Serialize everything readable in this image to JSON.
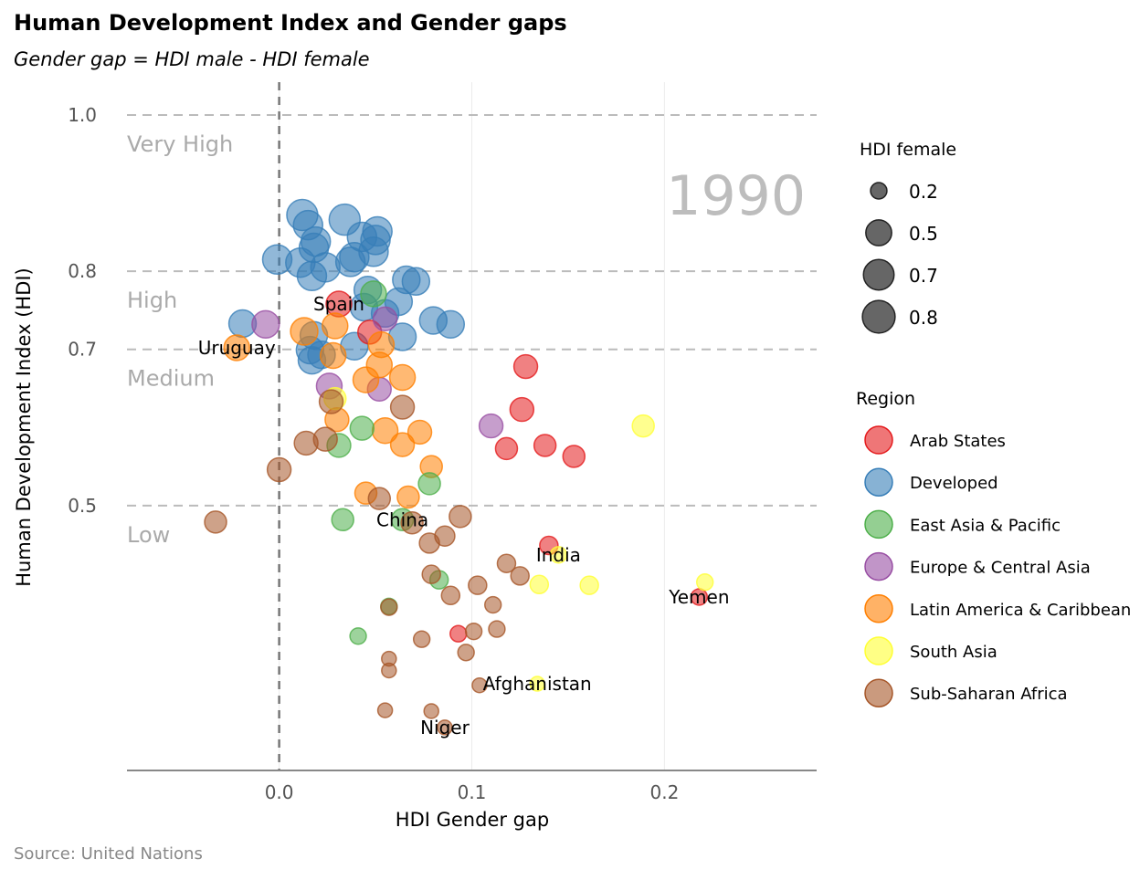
{
  "chart_data": {
    "type": "scatter",
    "title": "Human Development Index and Gender gaps",
    "subtitle": "Gender gap =  HDI male - HDI female",
    "xlabel": "HDI Gender gap",
    "ylabel": "Human Development Index (HDI)",
    "source": "Source: United Nations",
    "year": "1990",
    "xlim": [
      -0.079,
      0.279
    ],
    "ylim": [
      0.161,
      1.042
    ],
    "x_ticks": [
      {
        "value": 0.0,
        "label": "0.0"
      },
      {
        "value": 0.1,
        "label": "0.1"
      },
      {
        "value": 0.2,
        "label": "0.2"
      }
    ],
    "y_ticks": [
      {
        "value": 1.0,
        "label": "1.0"
      },
      {
        "value": 0.8,
        "label": "0.8"
      },
      {
        "value": 0.7,
        "label": "0.7"
      },
      {
        "value": 0.5,
        "label": "0.5"
      }
    ],
    "bands": [
      {
        "label": "Very High",
        "top": 1.0
      },
      {
        "label": "High",
        "top": 0.8
      },
      {
        "label": "Medium",
        "top": 0.7
      },
      {
        "label": "Low",
        "top": 0.5
      }
    ],
    "zero_line": 0.0,
    "size_legend": {
      "title": "HDI female",
      "values": [
        {
          "value": 0.2,
          "label": "0.2"
        },
        {
          "value": 0.5,
          "label": "0.5"
        },
        {
          "value": 0.7,
          "label": "0.7"
        },
        {
          "value": 0.8,
          "label": "0.8"
        }
      ]
    },
    "color_legend": {
      "title": "Region",
      "regions": [
        {
          "name": "Arab States",
          "color": "#e41a1c"
        },
        {
          "name": "Developed",
          "color": "#377eb8"
        },
        {
          "name": "East Asia & Pacific",
          "color": "#4daf4a"
        },
        {
          "name": "Europe & Central Asia",
          "color": "#984ea3"
        },
        {
          "name": "Latin America & Caribbean",
          "color": "#ff7f00"
        },
        {
          "name": "South Asia",
          "color": "#ffff33"
        },
        {
          "name": "Sub-Saharan Africa",
          "color": "#a65628"
        }
      ]
    },
    "columns": [
      "gap",
      "hdi",
      "hdi_female",
      "region",
      "label"
    ],
    "points": [
      [
        0.012,
        0.872,
        0.72,
        "Developed",
        ""
      ],
      [
        0.015,
        0.859,
        0.64,
        "Developed",
        ""
      ],
      [
        0.034,
        0.866,
        0.72,
        "Developed",
        ""
      ],
      [
        0.051,
        0.851,
        0.64,
        "Developed",
        ""
      ],
      [
        0.043,
        0.844,
        0.64,
        "Developed",
        ""
      ],
      [
        0.05,
        0.84,
        0.64,
        "Developed",
        ""
      ],
      [
        0.019,
        0.838,
        0.64,
        "Developed",
        ""
      ],
      [
        0.018,
        0.83,
        0.64,
        "Developed",
        ""
      ],
      [
        -0.001,
        0.815,
        0.64,
        "Developed",
        ""
      ],
      [
        0.011,
        0.811,
        0.64,
        "Developed",
        ""
      ],
      [
        0.024,
        0.805,
        0.64,
        "Developed",
        ""
      ],
      [
        0.037,
        0.812,
        0.64,
        "Developed",
        ""
      ],
      [
        0.049,
        0.825,
        0.64,
        "Developed",
        ""
      ],
      [
        0.039,
        0.818,
        0.64,
        "Developed",
        ""
      ],
      [
        0.017,
        0.794,
        0.64,
        "Developed",
        ""
      ],
      [
        0.066,
        0.789,
        0.56,
        "Developed",
        ""
      ],
      [
        0.071,
        0.787,
        0.56,
        "Developed",
        ""
      ],
      [
        0.046,
        0.776,
        0.56,
        "Developed",
        ""
      ],
      [
        0.062,
        0.761,
        0.56,
        "Developed",
        ""
      ],
      [
        0.044,
        0.754,
        0.56,
        "Developed",
        ""
      ],
      [
        0.055,
        0.746,
        0.56,
        "Developed",
        ""
      ],
      [
        0.08,
        0.737,
        0.56,
        "Developed",
        ""
      ],
      [
        0.089,
        0.732,
        0.56,
        "Developed",
        ""
      ],
      [
        -0.019,
        0.733,
        0.56,
        "Developed",
        ""
      ],
      [
        0.018,
        0.718,
        0.56,
        "Developed",
        ""
      ],
      [
        0.064,
        0.716,
        0.56,
        "Developed",
        ""
      ],
      [
        0.016,
        0.699,
        0.56,
        "Developed",
        ""
      ],
      [
        0.039,
        0.704,
        0.56,
        "Developed",
        ""
      ],
      [
        0.022,
        0.693,
        0.56,
        "Developed",
        ""
      ],
      [
        0.017,
        0.686,
        0.56,
        "Developed",
        ""
      ],
      [
        0.031,
        0.758,
        0.49,
        "Arab States",
        "Spain"
      ],
      [
        0.047,
        0.722,
        0.42,
        "Arab States",
        ""
      ],
      [
        0.128,
        0.678,
        0.42,
        "Arab States",
        ""
      ],
      [
        0.126,
        0.623,
        0.42,
        "Arab States",
        ""
      ],
      [
        0.118,
        0.573,
        0.36,
        "Arab States",
        ""
      ],
      [
        0.138,
        0.577,
        0.36,
        "Arab States",
        ""
      ],
      [
        0.153,
        0.563,
        0.36,
        "Arab States",
        ""
      ],
      [
        0.14,
        0.449,
        0.25,
        "Arab States",
        ""
      ],
      [
        0.218,
        0.383,
        0.2,
        "Arab States",
        "Yemen"
      ],
      [
        0.093,
        0.336,
        0.2,
        "Arab States",
        ""
      ],
      [
        -0.007,
        0.732,
        0.56,
        "Europe & Central Asia",
        ""
      ],
      [
        0.026,
        0.653,
        0.49,
        "Europe & Central Asia",
        ""
      ],
      [
        0.052,
        0.649,
        0.42,
        "Europe & Central Asia",
        ""
      ],
      [
        0.11,
        0.602,
        0.42,
        "Europe & Central Asia",
        ""
      ],
      [
        0.055,
        0.739,
        0.42,
        "Europe & Central Asia",
        ""
      ],
      [
        -0.022,
        0.702,
        0.49,
        "Latin America & Caribbean",
        "Uruguay"
      ],
      [
        0.013,
        0.723,
        0.56,
        "Latin America & Caribbean",
        ""
      ],
      [
        0.029,
        0.73,
        0.49,
        "Latin America & Caribbean",
        ""
      ],
      [
        0.053,
        0.706,
        0.49,
        "Latin America & Caribbean",
        ""
      ],
      [
        0.052,
        0.68,
        0.49,
        "Latin America & Caribbean",
        ""
      ],
      [
        0.045,
        0.661,
        0.49,
        "Latin America & Caribbean",
        ""
      ],
      [
        0.064,
        0.664,
        0.49,
        "Latin America & Caribbean",
        ""
      ],
      [
        0.03,
        0.61,
        0.42,
        "Latin America & Caribbean",
        ""
      ],
      [
        0.055,
        0.596,
        0.49,
        "Latin America & Caribbean",
        ""
      ],
      [
        0.073,
        0.594,
        0.42,
        "Latin America & Caribbean",
        ""
      ],
      [
        0.064,
        0.578,
        0.42,
        "Latin America & Caribbean",
        ""
      ],
      [
        0.079,
        0.55,
        0.36,
        "Latin America & Caribbean",
        ""
      ],
      [
        0.045,
        0.516,
        0.36,
        "Latin America & Caribbean",
        ""
      ],
      [
        0.067,
        0.511,
        0.36,
        "Latin America & Caribbean",
        ""
      ],
      [
        0.028,
        0.692,
        0.49,
        "Latin America & Caribbean",
        ""
      ],
      [
        0.189,
        0.602,
        0.36,
        "South Asia",
        ""
      ],
      [
        0.135,
        0.399,
        0.25,
        "South Asia",
        ""
      ],
      [
        0.161,
        0.398,
        0.25,
        "South Asia",
        ""
      ],
      [
        0.221,
        0.402,
        0.2,
        "South Asia",
        ""
      ],
      [
        0.145,
        0.437,
        0.2,
        "South Asia",
        "India"
      ],
      [
        0.134,
        0.272,
        0.16,
        "South Asia",
        "Afghanistan"
      ],
      [
        0.029,
        0.637,
        0.36,
        "South Asia",
        ""
      ],
      [
        0.043,
        0.599,
        0.42,
        "East Asia & Pacific",
        ""
      ],
      [
        0.031,
        0.577,
        0.42,
        "East Asia & Pacific",
        ""
      ],
      [
        0.078,
        0.528,
        0.36,
        "East Asia & Pacific",
        ""
      ],
      [
        0.033,
        0.482,
        0.36,
        "East Asia & Pacific",
        ""
      ],
      [
        0.064,
        0.482,
        0.36,
        "East Asia & Pacific",
        "China"
      ],
      [
        0.083,
        0.405,
        0.25,
        "East Asia & Pacific",
        ""
      ],
      [
        0.057,
        0.371,
        0.2,
        "East Asia & Pacific",
        ""
      ],
      [
        0.041,
        0.333,
        0.2,
        "East Asia & Pacific",
        ""
      ],
      [
        0.049,
        0.771,
        0.49,
        "East Asia & Pacific",
        ""
      ],
      [
        0.027,
        0.633,
        0.42,
        "Sub-Saharan Africa",
        ""
      ],
      [
        0.064,
        0.626,
        0.42,
        "Sub-Saharan Africa",
        ""
      ],
      [
        0.024,
        0.585,
        0.42,
        "Sub-Saharan Africa",
        ""
      ],
      [
        0.014,
        0.58,
        0.42,
        "Sub-Saharan Africa",
        ""
      ],
      [
        0.0,
        0.546,
        0.42,
        "Sub-Saharan Africa",
        ""
      ],
      [
        -0.033,
        0.479,
        0.36,
        "Sub-Saharan Africa",
        ""
      ],
      [
        0.052,
        0.509,
        0.36,
        "Sub-Saharan Africa",
        ""
      ],
      [
        0.069,
        0.478,
        0.36,
        "Sub-Saharan Africa",
        ""
      ],
      [
        0.094,
        0.486,
        0.36,
        "Sub-Saharan Africa",
        ""
      ],
      [
        0.086,
        0.461,
        0.3,
        "Sub-Saharan Africa",
        ""
      ],
      [
        0.078,
        0.452,
        0.3,
        "Sub-Saharan Africa",
        ""
      ],
      [
        0.079,
        0.412,
        0.25,
        "Sub-Saharan Africa",
        ""
      ],
      [
        0.089,
        0.385,
        0.25,
        "Sub-Saharan Africa",
        ""
      ],
      [
        0.103,
        0.398,
        0.25,
        "Sub-Saharan Africa",
        ""
      ],
      [
        0.118,
        0.426,
        0.25,
        "Sub-Saharan Africa",
        ""
      ],
      [
        0.125,
        0.41,
        0.25,
        "Sub-Saharan Africa",
        ""
      ],
      [
        0.111,
        0.373,
        0.2,
        "Sub-Saharan Africa",
        ""
      ],
      [
        0.057,
        0.37,
        0.2,
        "Sub-Saharan Africa",
        ""
      ],
      [
        0.101,
        0.339,
        0.2,
        "Sub-Saharan Africa",
        ""
      ],
      [
        0.113,
        0.342,
        0.2,
        "Sub-Saharan Africa",
        ""
      ],
      [
        0.074,
        0.329,
        0.2,
        "Sub-Saharan Africa",
        ""
      ],
      [
        0.097,
        0.312,
        0.2,
        "Sub-Saharan Africa",
        ""
      ],
      [
        0.057,
        0.304,
        0.16,
        "Sub-Saharan Africa",
        ""
      ],
      [
        0.057,
        0.289,
        0.16,
        "Sub-Saharan Africa",
        ""
      ],
      [
        0.104,
        0.27,
        0.16,
        "Sub-Saharan Africa",
        ""
      ],
      [
        0.055,
        0.238,
        0.16,
        "Sub-Saharan Africa",
        ""
      ],
      [
        0.079,
        0.237,
        0.16,
        "Sub-Saharan Africa",
        ""
      ],
      [
        0.086,
        0.216,
        0.16,
        "Sub-Saharan Africa",
        "Niger"
      ]
    ]
  }
}
